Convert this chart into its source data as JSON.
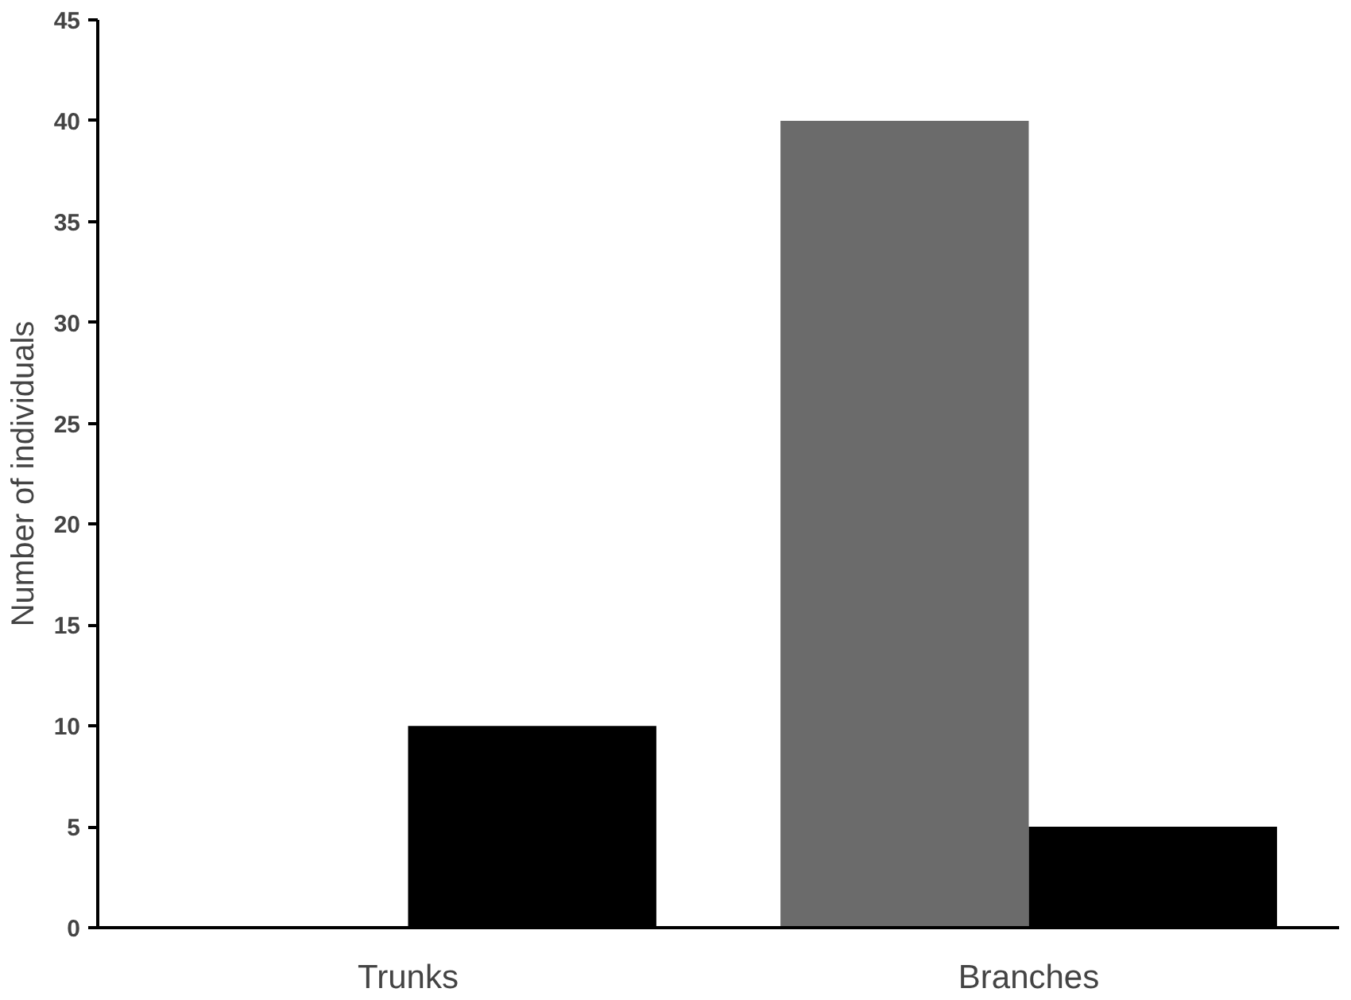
{
  "chart_data": {
    "type": "bar",
    "ylabel": "Number of individuals",
    "categories": [
      "Trunks",
      "Branches"
    ],
    "series": [
      {
        "color": "#6b6b6b",
        "values": [
          0,
          40
        ]
      },
      {
        "color": "#000000",
        "values": [
          10,
          5
        ]
      }
    ],
    "ylim": [
      0,
      45
    ],
    "yticks": [
      0,
      5,
      10,
      15,
      20,
      25,
      30,
      35,
      40,
      45
    ]
  }
}
